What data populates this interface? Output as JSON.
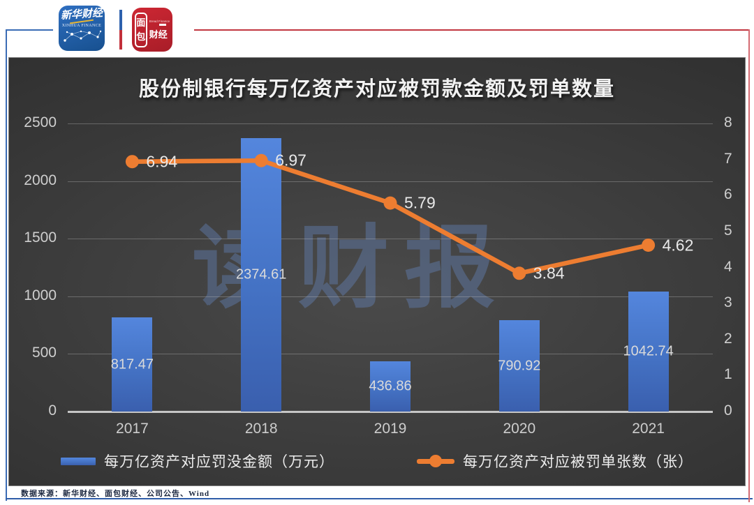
{
  "header": {
    "logo_xinhua": {
      "name_cn": "新华财经",
      "name_en": "XINHUA FINANCE"
    },
    "logo_bread": {
      "char_top": "面",
      "char_bottom": "包",
      "name_cn": "财经",
      "name_en": "Bread Finance"
    }
  },
  "chart_data": {
    "type": "combo-bar-line",
    "title": "股份制银行每万亿资产对应被罚款金额及罚单数量",
    "categories": [
      "2017",
      "2018",
      "2019",
      "2020",
      "2021"
    ],
    "series": [
      {
        "name": "每万亿资产对应罚没金额（万元）",
        "chart_type": "bar",
        "y_axis": "left",
        "color": "#4472c4",
        "values": [
          817.47,
          2374.61,
          436.86,
          790.92,
          1042.74
        ]
      },
      {
        "name": "每万亿资产对应被罚单张数（张）",
        "chart_type": "line",
        "y_axis": "right",
        "color": "#ed7d31",
        "values": [
          6.94,
          6.97,
          5.79,
          3.84,
          4.62
        ]
      }
    ],
    "left_axis": {
      "min": 0,
      "max": 2500,
      "step": 500,
      "tick_labels": [
        "0",
        "500",
        "1000",
        "1500",
        "2000",
        "2500"
      ]
    },
    "right_axis": {
      "min": 0,
      "max": 8,
      "step": 1,
      "tick_labels": [
        "0",
        "1",
        "2",
        "3",
        "4",
        "5",
        "6",
        "7",
        "8"
      ]
    },
    "grid": "horizontal",
    "legend_position": "bottom",
    "data_labels": true,
    "watermark": "读财报",
    "background": "dark-gray-gradient"
  },
  "footer": {
    "source": "数据来源：新华财经、面包财经、公司公告、Wind"
  }
}
